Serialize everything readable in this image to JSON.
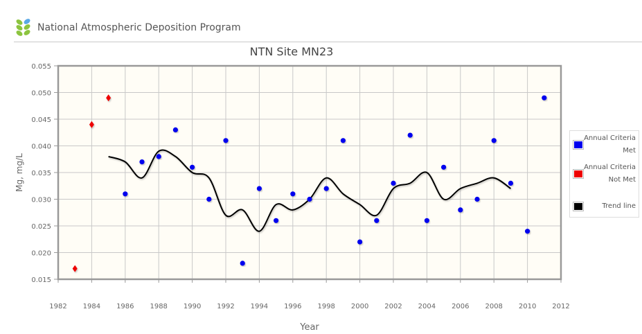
{
  "header": {
    "org_name": "National Atmospheric Deposition Program"
  },
  "chart_data": {
    "type": "scatter",
    "title": "NTN Site MN23",
    "xlabel": "Year",
    "ylabel": "Mg, mg/L",
    "xlim": [
      1982,
      2012
    ],
    "ylim": [
      0.015,
      0.055
    ],
    "x_ticks": [
      "1982",
      "1984",
      "1986",
      "1988",
      "1990",
      "1992",
      "1994",
      "1996",
      "1998",
      "2000",
      "2002",
      "2004",
      "2006",
      "2008",
      "2010",
      "2012"
    ],
    "y_ticks": [
      "0.015",
      "0.020",
      "0.025",
      "0.030",
      "0.035",
      "0.040",
      "0.045",
      "0.050",
      "0.055"
    ],
    "grid": true,
    "legend_position": "right",
    "series": [
      {
        "name": "Annual Criteria Met",
        "color": "#0000ee",
        "marker": "circle",
        "x": [
          1986,
          1987,
          1988,
          1989,
          1990,
          1991,
          1992,
          1993,
          1994,
          1995,
          1996,
          1997,
          1998,
          1999,
          2000,
          2001,
          2002,
          2003,
          2004,
          2005,
          2006,
          2007,
          2008,
          2009,
          2010,
          2011
        ],
        "y": [
          0.031,
          0.037,
          0.038,
          0.043,
          0.036,
          0.03,
          0.041,
          0.018,
          0.032,
          0.026,
          0.031,
          0.03,
          0.032,
          0.041,
          0.022,
          0.026,
          0.033,
          0.042,
          0.026,
          0.036,
          0.028,
          0.03,
          0.041,
          0.033,
          0.024,
          0.049
        ]
      },
      {
        "name": "Annual Criteria Not Met",
        "color": "#ee0000",
        "marker": "diamond",
        "x": [
          1983,
          1984,
          1985
        ],
        "y": [
          0.017,
          0.044,
          0.049
        ]
      },
      {
        "name": "Trend line",
        "color": "#000000",
        "marker": "line",
        "x": [
          1985,
          1986,
          1987,
          1988,
          1989,
          1990,
          1991,
          1992,
          1993,
          1994,
          1995,
          1996,
          1997,
          1998,
          1999,
          2000,
          2001,
          2002,
          2003,
          2004,
          2005,
          2006,
          2007,
          2008,
          2009
        ],
        "y": [
          0.038,
          0.037,
          0.034,
          0.039,
          0.038,
          0.035,
          0.034,
          0.027,
          0.028,
          0.024,
          0.029,
          0.028,
          0.03,
          0.034,
          0.031,
          0.029,
          0.027,
          0.032,
          0.033,
          0.035,
          0.03,
          0.032,
          0.033,
          0.034,
          0.032
        ]
      }
    ]
  },
  "legend": {
    "items": [
      {
        "label": "Annual Criteria Met",
        "color": "#0000ee"
      },
      {
        "label": "Annual Criteria Not Met",
        "color": "#ee0000"
      },
      {
        "label": "Trend line",
        "color": "#000000"
      }
    ]
  }
}
